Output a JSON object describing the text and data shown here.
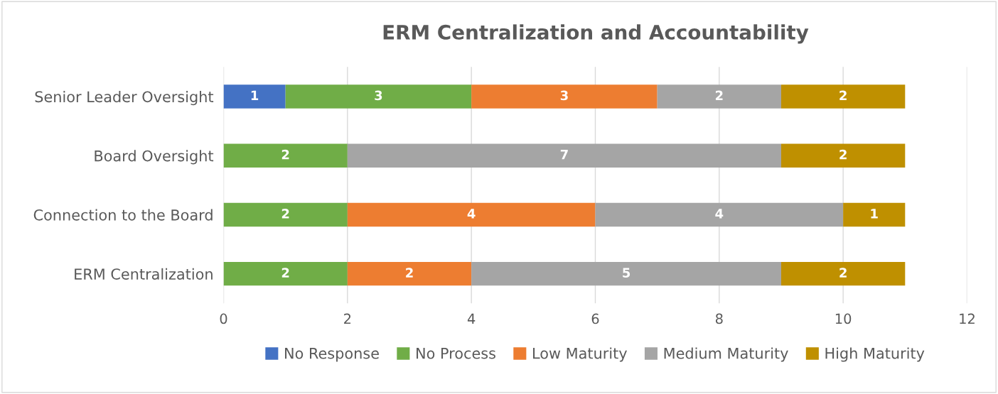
{
  "chart_data": {
    "type": "bar",
    "orientation": "horizontal",
    "stacked": true,
    "title": "ERM Centralization and Accountability",
    "categories": [
      "Senior Leader Oversight",
      "Board Oversight",
      "Connection to the Board",
      "ERM Centralization"
    ],
    "series": [
      {
        "name": "No Response",
        "color": "#4472c4",
        "values": [
          1,
          null,
          null,
          null
        ]
      },
      {
        "name": "No Process",
        "color": "#70ad47",
        "values": [
          3,
          2,
          2,
          2
        ]
      },
      {
        "name": "Low Maturity",
        "color": "#ed7d31",
        "values": [
          3,
          null,
          4,
          2
        ]
      },
      {
        "name": "Medium Maturity",
        "color": "#a5a5a5",
        "values": [
          2,
          7,
          4,
          5
        ]
      },
      {
        "name": "High Maturity",
        "color": "#bf9000",
        "values": [
          2,
          2,
          1,
          2
        ]
      }
    ],
    "xlim": [
      0,
      12
    ],
    "xticks": [
      0,
      2,
      4,
      6,
      8,
      10,
      12
    ],
    "grid": "x",
    "legend": "bottom",
    "data_labels": true
  }
}
